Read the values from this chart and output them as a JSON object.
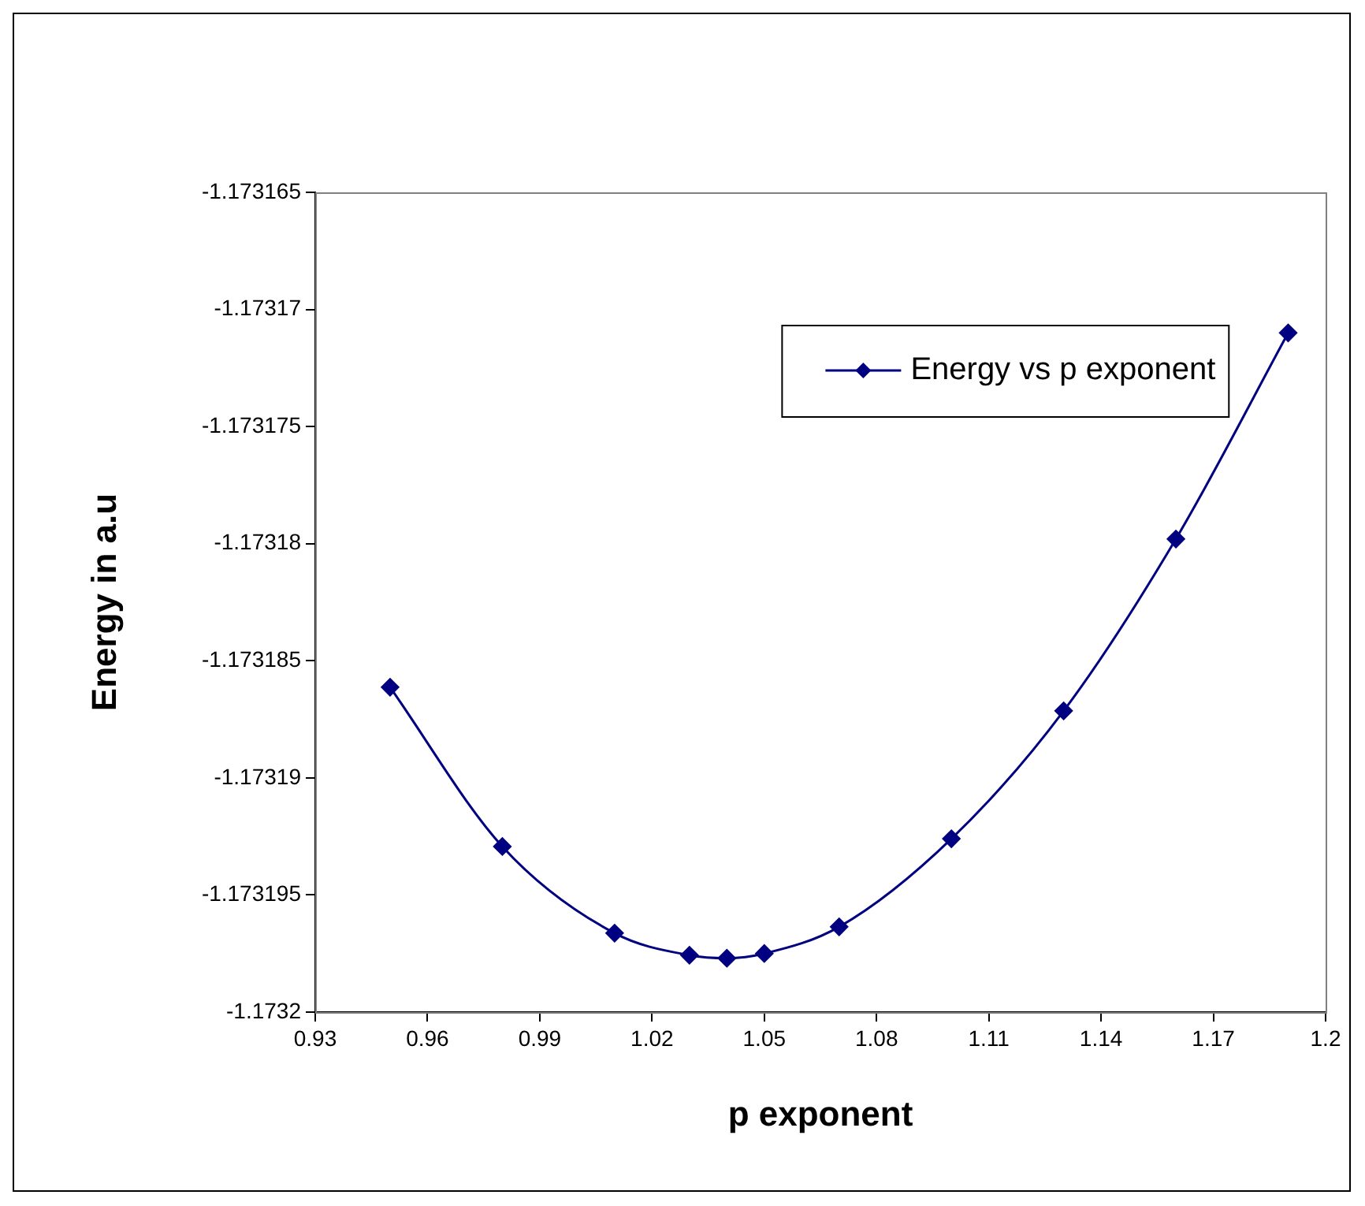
{
  "chart_data": {
    "type": "line",
    "xlabel": "p exponent",
    "ylabel": "Energy in a.u",
    "x": [
      0.95,
      0.98,
      1.01,
      1.03,
      1.04,
      1.05,
      1.07,
      1.1,
      1.13,
      1.16,
      1.19
    ],
    "series": [
      {
        "name": "Energy vs p exponent",
        "color": "#000080",
        "values": [
          -1.17318613,
          -1.17319293,
          -1.17319663,
          -1.17319757,
          -1.1731977,
          -1.1731975,
          -1.17319636,
          -1.1731926,
          -1.17318714,
          -1.1731798,
          -1.173171
        ]
      }
    ],
    "xlim": [
      0.93,
      1.2
    ],
    "xticks": [
      0.93,
      0.96,
      0.99,
      1.02,
      1.05,
      1.08,
      1.11,
      1.14,
      1.17,
      1.2
    ],
    "ylim": [
      -1.1732,
      -1.173165
    ],
    "yticks": [
      -1.1732,
      -1.173195,
      -1.17319,
      -1.173185,
      -1.17318,
      -1.173175,
      -1.17317,
      -1.173165
    ],
    "marker": "diamond",
    "line_style": "solid",
    "legend": "top right"
  }
}
